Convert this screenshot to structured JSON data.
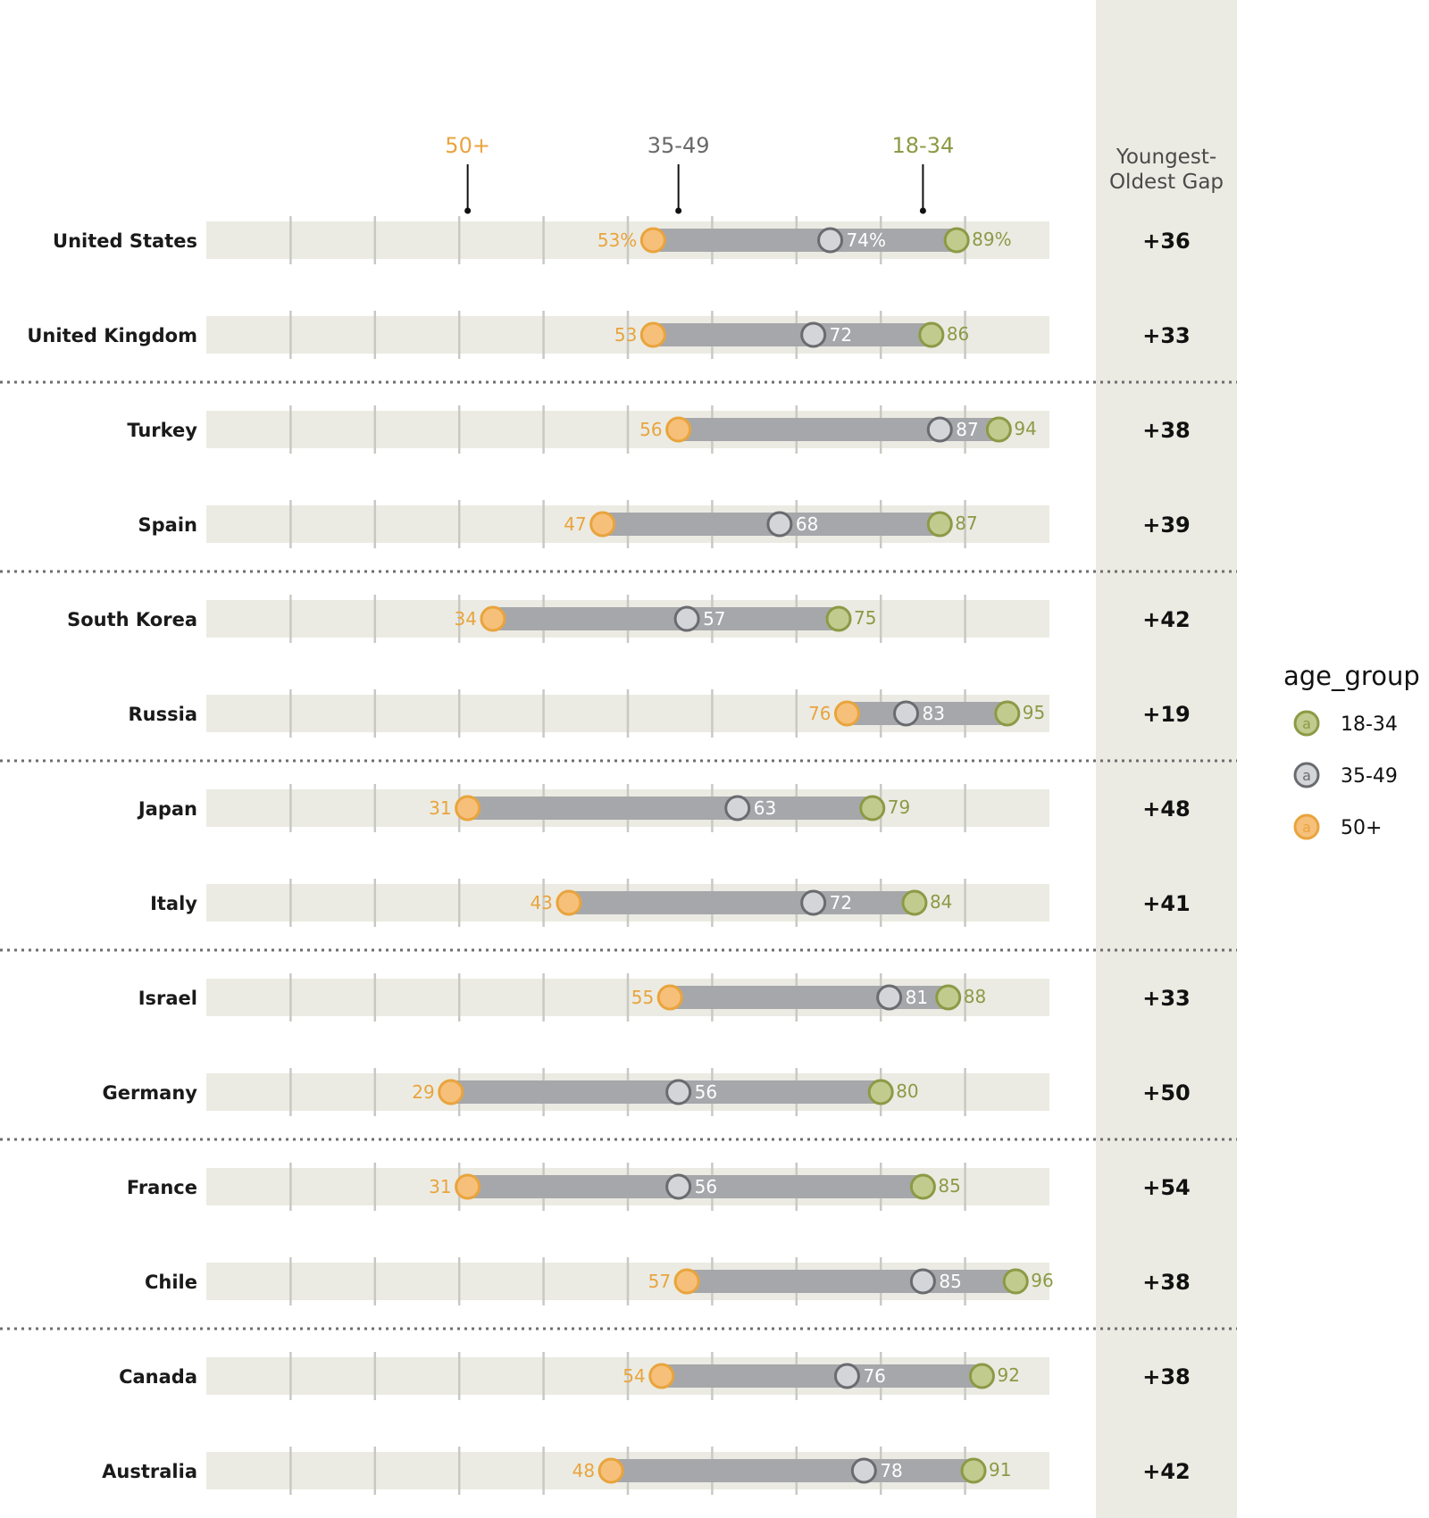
{
  "gap_column": {
    "title_line1": "Youngest-",
    "title_line2": "Oldest Gap"
  },
  "legend": {
    "title": "age_group",
    "items": [
      {
        "label": "18-34",
        "key": "young",
        "glyph": "a"
      },
      {
        "label": "35-49",
        "key": "mid",
        "glyph": "a"
      },
      {
        "label": "50+",
        "key": "old",
        "glyph": "a"
      }
    ]
  },
  "colors": {
    "young_fill": "#c2cb8e",
    "young_stroke": "#8c9a45",
    "young_text": "#8c9a45",
    "mid_fill": "#d4d5d8",
    "mid_stroke": "#6a6b70",
    "mid_text": "#ffffff",
    "old_fill": "#f6c07a",
    "old_stroke": "#e9a43d",
    "old_text": "#e9a43d",
    "header_mid_text": "#6a6a6a",
    "track": "#ebebe3",
    "gap_panel": "#ebebe3",
    "range_bar": "#a6a7aa",
    "tick": "#c9c9c3",
    "separator": "#6e6e6e"
  },
  "chart_data": {
    "type": "dot-range",
    "xlim": [
      0,
      100
    ],
    "x_ticks": [
      10,
      20,
      30,
      40,
      50,
      60,
      70,
      80,
      90
    ],
    "series_headers": [
      {
        "label": "50+",
        "key": "old",
        "anchor": 31
      },
      {
        "label": "35-49",
        "key": "mid",
        "anchor": 56
      },
      {
        "label": "18-34",
        "key": "young",
        "anchor": 85
      }
    ],
    "separator_after_rows": [
      1,
      3,
      5,
      7,
      9,
      11
    ],
    "rows": [
      {
        "country": "United States",
        "old": 53,
        "mid": 74,
        "young": 89,
        "old_label": "53%",
        "mid_label": "74%",
        "young_label": "89%",
        "gap": "+36"
      },
      {
        "country": "United Kingdom",
        "old": 53,
        "mid": 72,
        "young": 86,
        "old_label": "53",
        "mid_label": "72",
        "young_label": "86",
        "gap": "+33"
      },
      {
        "country": "Turkey",
        "old": 56,
        "mid": 87,
        "young": 94,
        "old_label": "56",
        "mid_label": "87",
        "young_label": "94",
        "gap": "+38"
      },
      {
        "country": "Spain",
        "old": 47,
        "mid": 68,
        "young": 87,
        "old_label": "47",
        "mid_label": "68",
        "young_label": "87",
        "gap": "+39"
      },
      {
        "country": "South Korea",
        "old": 34,
        "mid": 57,
        "young": 75,
        "old_label": "34",
        "mid_label": "57",
        "young_label": "75",
        "gap": "+42"
      },
      {
        "country": "Russia",
        "old": 76,
        "mid": 83,
        "young": 95,
        "old_label": "76",
        "mid_label": "83",
        "young_label": "95",
        "gap": "+19"
      },
      {
        "country": "Japan",
        "old": 31,
        "mid": 63,
        "young": 79,
        "old_label": "31",
        "mid_label": "63",
        "young_label": "79",
        "gap": "+48"
      },
      {
        "country": "Italy",
        "old": 43,
        "mid": 72,
        "young": 84,
        "old_label": "43",
        "mid_label": "72",
        "young_label": "84",
        "gap": "+41"
      },
      {
        "country": "Israel",
        "old": 55,
        "mid": 81,
        "young": 88,
        "old_label": "55",
        "mid_label": "81",
        "young_label": "88",
        "gap": "+33"
      },
      {
        "country": "Germany",
        "old": 29,
        "mid": 56,
        "young": 80,
        "old_label": "29",
        "mid_label": "56",
        "young_label": "80",
        "gap": "+50"
      },
      {
        "country": "France",
        "old": 31,
        "mid": 56,
        "young": 85,
        "old_label": "31",
        "mid_label": "56",
        "young_label": "85",
        "gap": "+54"
      },
      {
        "country": "Chile",
        "old": 57,
        "mid": 85,
        "young": 96,
        "old_label": "57",
        "mid_label": "85",
        "young_label": "96",
        "gap": "+38"
      },
      {
        "country": "Canada",
        "old": 54,
        "mid": 76,
        "young": 92,
        "old_label": "54",
        "mid_label": "76",
        "young_label": "92",
        "gap": "+38"
      },
      {
        "country": "Australia",
        "old": 48,
        "mid": 78,
        "young": 91,
        "old_label": "48",
        "mid_label": "78",
        "young_label": "91",
        "gap": "+42"
      }
    ]
  }
}
